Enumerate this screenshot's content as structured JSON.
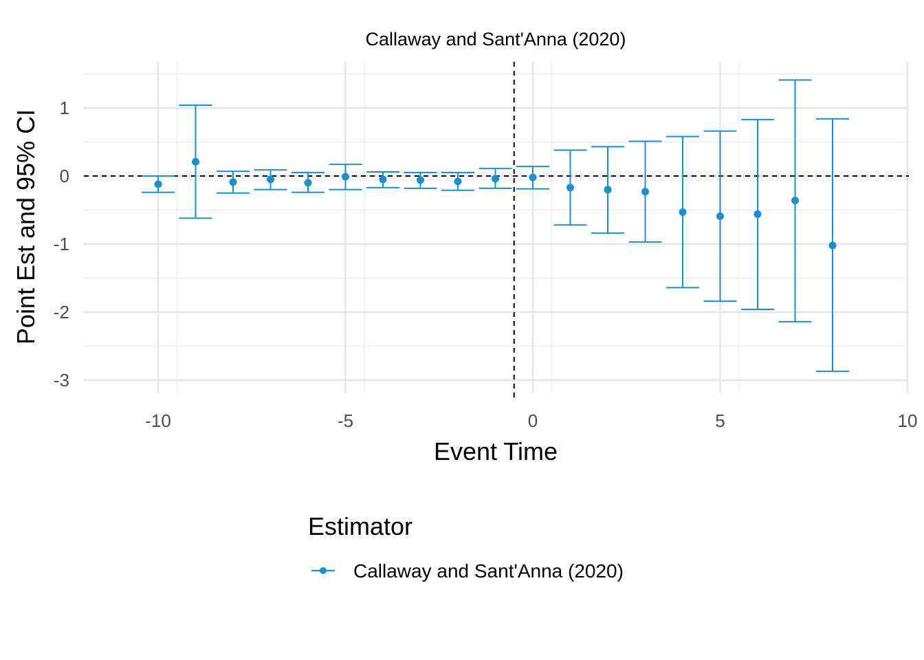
{
  "chart_data": {
    "type": "scatter",
    "title": "Callaway and Sant'Anna (2020)",
    "xlabel": "Event Time",
    "ylabel": "Point Est and 95% CI",
    "xlim": [
      -12,
      10
    ],
    "ylim": [
      -3.05,
      1.5
    ],
    "x_ticks": [
      -10,
      -5,
      0,
      5,
      10
    ],
    "x_tick_labels": [
      "-10",
      "-5",
      "0",
      "5",
      "10"
    ],
    "y_ticks": [
      1,
      0,
      -1,
      -2,
      -3
    ],
    "y_tick_labels": [
      "1",
      "0",
      "-1",
      "-2",
      "-3"
    ],
    "grid": true,
    "reference_lines": {
      "h": 0,
      "v": -0.5
    },
    "legend": {
      "title": "Estimator",
      "position": "bottom"
    },
    "series": [
      {
        "name": "Callaway and Sant'Anna (2020)",
        "color": "#1a90cf",
        "x": [
          -10,
          -9,
          -8,
          -7,
          -6,
          -5,
          -4,
          -3,
          -2,
          -1,
          0,
          1,
          2,
          3,
          4,
          5,
          6,
          7,
          8
        ],
        "y": [
          -0.12,
          0.21,
          -0.09,
          -0.05,
          -0.1,
          -0.01,
          -0.05,
          -0.06,
          -0.08,
          -0.04,
          -0.02,
          -0.17,
          -0.2,
          -0.23,
          -0.53,
          -0.59,
          -0.56,
          -0.36,
          -1.02
        ],
        "lower": [
          -0.24,
          -0.62,
          -0.25,
          -0.2,
          -0.24,
          -0.2,
          -0.17,
          -0.18,
          -0.21,
          -0.18,
          -0.19,
          -0.72,
          -0.84,
          -0.97,
          -1.64,
          -1.84,
          -1.96,
          -2.14,
          -2.87
        ],
        "upper": [
          0.0,
          1.04,
          0.07,
          0.09,
          0.05,
          0.17,
          0.06,
          0.05,
          0.05,
          0.11,
          0.14,
          0.38,
          0.43,
          0.51,
          0.58,
          0.66,
          0.83,
          1.41,
          0.84
        ]
      }
    ]
  }
}
